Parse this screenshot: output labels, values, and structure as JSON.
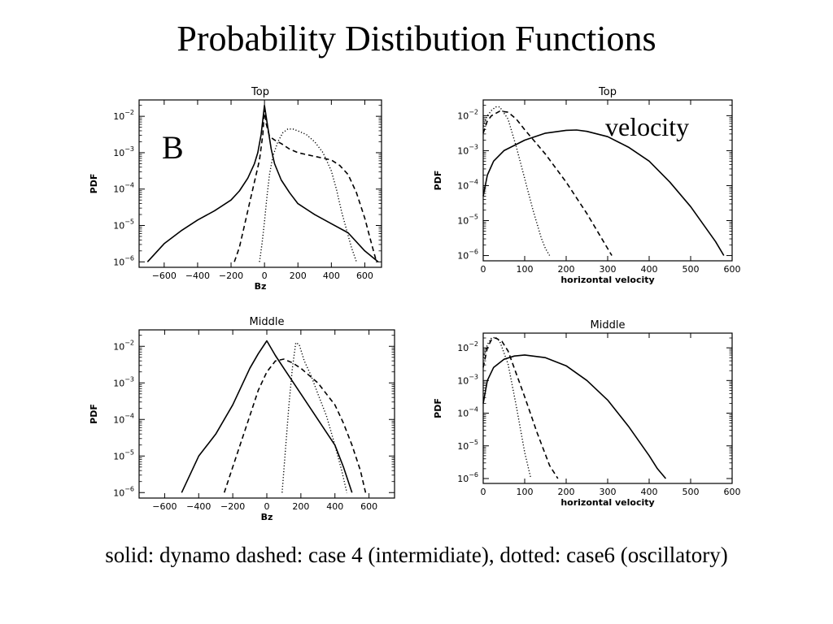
{
  "slide": {
    "title": "Probability Distibution Functions",
    "caption": "solid: dynamo  dashed: case 4 (intermidiate), dotted: case6 (oscillatory)"
  },
  "chart_data": [
    {
      "type": "line",
      "title": "Top",
      "xlabel": "Bz",
      "ylabel": "PDF",
      "annotation": "B",
      "xlim": [
        -750,
        700
      ],
      "ylim_log10": [
        -6.15,
        -1.55
      ],
      "xticks": [
        -600,
        -400,
        -200,
        0,
        200,
        400,
        600
      ],
      "yticks_exp": [
        -6,
        -5,
        -4,
        -3,
        -2
      ],
      "series": [
        {
          "style": "solid",
          "x": [
            -700,
            -600,
            -500,
            -400,
            -300,
            -200,
            -150,
            -100,
            -60,
            -40,
            -20,
            0,
            20,
            40,
            60,
            100,
            150,
            200,
            300,
            400,
            500,
            600,
            680
          ],
          "log10_y": [
            -6.0,
            -5.5,
            -5.15,
            -4.85,
            -4.6,
            -4.3,
            -4.05,
            -3.7,
            -3.3,
            -3.0,
            -2.5,
            -1.7,
            -2.3,
            -2.9,
            -3.3,
            -3.75,
            -4.1,
            -4.4,
            -4.7,
            -4.95,
            -5.2,
            -5.7,
            -6.0
          ]
        },
        {
          "style": "dashed",
          "x": [
            -180,
            -150,
            -120,
            -90,
            -60,
            -30,
            -10,
            0,
            10,
            30,
            60,
            100,
            150,
            200,
            250,
            300,
            350,
            400,
            450,
            500,
            550,
            600,
            640,
            670
          ],
          "log10_y": [
            -6.0,
            -5.6,
            -5.0,
            -4.4,
            -3.8,
            -3.2,
            -2.5,
            -1.8,
            -2.2,
            -2.55,
            -2.65,
            -2.75,
            -2.9,
            -3.0,
            -3.05,
            -3.1,
            -3.15,
            -3.2,
            -3.35,
            -3.6,
            -4.1,
            -4.8,
            -5.5,
            -6.0
          ]
        },
        {
          "style": "dotted",
          "x": [
            -30,
            -15,
            0,
            15,
            30,
            50,
            80,
            110,
            140,
            170,
            200,
            250,
            300,
            350,
            400,
            430,
            460,
            490,
            520,
            550
          ],
          "log10_y": [
            -6.0,
            -5.5,
            -4.9,
            -4.2,
            -3.6,
            -3.1,
            -2.7,
            -2.45,
            -2.35,
            -2.35,
            -2.4,
            -2.5,
            -2.7,
            -3.0,
            -3.5,
            -4.0,
            -4.6,
            -5.1,
            -5.6,
            -6.0
          ]
        }
      ]
    },
    {
      "type": "line",
      "title": "Top",
      "xlabel": "horizontal velocity",
      "ylabel": "PDF",
      "annotation": "velocity",
      "xlim": [
        0,
        600
      ],
      "ylim_log10": [
        -6.15,
        -1.55
      ],
      "xticks": [
        0,
        100,
        200,
        300,
        400,
        500,
        600
      ],
      "yticks_exp": [
        -6,
        -5,
        -4,
        -3,
        -2
      ],
      "series": [
        {
          "style": "solid",
          "x": [
            0,
            10,
            25,
            50,
            100,
            150,
            200,
            225,
            250,
            300,
            350,
            400,
            450,
            500,
            530,
            560,
            580
          ],
          "log10_y": [
            -4.3,
            -3.7,
            -3.3,
            -3.0,
            -2.7,
            -2.5,
            -2.42,
            -2.41,
            -2.45,
            -2.6,
            -2.9,
            -3.3,
            -3.9,
            -4.6,
            -5.1,
            -5.6,
            -6.0
          ]
        },
        {
          "style": "dashed",
          "x": [
            0,
            10,
            20,
            40,
            60,
            80,
            100,
            150,
            200,
            250,
            280,
            300,
            310
          ],
          "log10_y": [
            -2.5,
            -2.15,
            -2.0,
            -1.87,
            -1.9,
            -2.1,
            -2.4,
            -3.1,
            -3.9,
            -4.8,
            -5.4,
            -5.8,
            -6.0
          ]
        },
        {
          "style": "dotted",
          "x": [
            0,
            10,
            20,
            30,
            40,
            60,
            80,
            100,
            120,
            140,
            150,
            160
          ],
          "log10_y": [
            -2.3,
            -2.0,
            -1.85,
            -1.75,
            -1.75,
            -2.1,
            -2.9,
            -3.8,
            -4.7,
            -5.5,
            -5.8,
            -6.0
          ]
        }
      ]
    },
    {
      "type": "line",
      "title": "Middle",
      "xlabel": "Bz",
      "ylabel": "PDF",
      "xlim": [
        -750,
        750
      ],
      "ylim_log10": [
        -6.15,
        -1.55
      ],
      "xticks": [
        -600,
        -400,
        -200,
        0,
        200,
        400,
        600
      ],
      "yticks_exp": [
        -6,
        -5,
        -4,
        -3,
        -2
      ],
      "series": [
        {
          "style": "solid",
          "x": [
            -500,
            -450,
            -400,
            -300,
            -200,
            -100,
            -50,
            0,
            50,
            100,
            200,
            300,
            400,
            450,
            500
          ],
          "log10_y": [
            -6.0,
            -5.5,
            -5.0,
            -4.4,
            -3.6,
            -2.6,
            -2.2,
            -1.85,
            -2.25,
            -2.6,
            -3.3,
            -4.0,
            -4.7,
            -5.3,
            -6.0
          ]
        },
        {
          "style": "dashed",
          "x": [
            -250,
            -200,
            -150,
            -100,
            -50,
            0,
            50,
            100,
            150,
            200,
            300,
            400,
            450,
            500,
            550,
            580
          ],
          "log10_y": [
            -6.0,
            -5.3,
            -4.6,
            -3.9,
            -3.2,
            -2.7,
            -2.4,
            -2.35,
            -2.45,
            -2.6,
            -3.0,
            -3.6,
            -4.1,
            -4.7,
            -5.4,
            -6.0
          ]
        },
        {
          "style": "dotted",
          "x": [
            90,
            110,
            130,
            150,
            170,
            190,
            220,
            260,
            300,
            350,
            400,
            440,
            470
          ],
          "log10_y": [
            -6.0,
            -4.8,
            -3.6,
            -2.6,
            -1.9,
            -1.95,
            -2.4,
            -2.8,
            -3.3,
            -3.9,
            -4.7,
            -5.4,
            -6.0
          ]
        }
      ]
    },
    {
      "type": "line",
      "title": "Middle",
      "xlabel": "horizontal velocity",
      "ylabel": "PDF",
      "xlim": [
        0,
        600
      ],
      "ylim_log10": [
        -6.15,
        -1.55
      ],
      "xticks": [
        0,
        100,
        200,
        300,
        400,
        500,
        600
      ],
      "yticks_exp": [
        -6,
        -5,
        -4,
        -3,
        -2
      ],
      "series": [
        {
          "style": "solid",
          "x": [
            0,
            10,
            25,
            50,
            75,
            100,
            150,
            200,
            250,
            300,
            350,
            400,
            420,
            440
          ],
          "log10_y": [
            -3.7,
            -3.0,
            -2.6,
            -2.35,
            -2.25,
            -2.22,
            -2.3,
            -2.55,
            -3.0,
            -3.6,
            -4.4,
            -5.3,
            -5.7,
            -6.0
          ]
        },
        {
          "style": "dashed",
          "x": [
            0,
            10,
            20,
            30,
            45,
            60,
            80,
            100,
            130,
            160,
            180
          ],
          "log10_y": [
            -2.6,
            -2.0,
            -1.75,
            -1.7,
            -1.8,
            -2.1,
            -2.8,
            -3.5,
            -4.6,
            -5.6,
            -6.0
          ]
        },
        {
          "style": "dotted",
          "x": [
            0,
            10,
            20,
            30,
            40,
            60,
            80,
            100,
            115
          ],
          "log10_y": [
            -2.3,
            -1.9,
            -1.7,
            -1.68,
            -1.8,
            -2.5,
            -3.8,
            -5.2,
            -6.0
          ]
        }
      ]
    }
  ]
}
